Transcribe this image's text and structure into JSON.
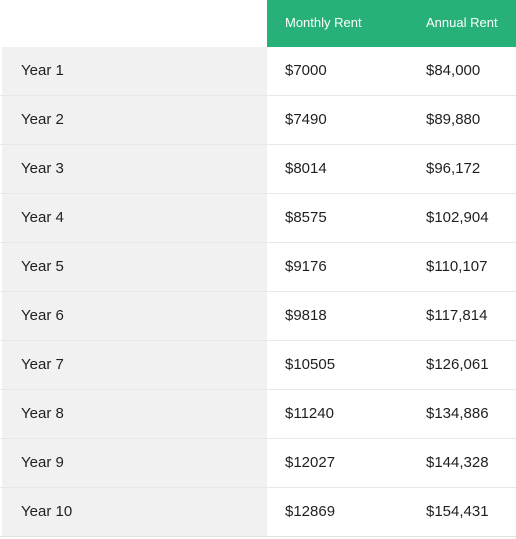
{
  "header": {
    "monthly_label": "Monthly Rent",
    "annual_label": "Annual Rent"
  },
  "colors": {
    "header_green": "#27b178",
    "label_column_bg": "#f1f1f1"
  },
  "rows": [
    {
      "year": "Year 1",
      "monthly": "$7000",
      "annual": "$84,000"
    },
    {
      "year": "Year 2",
      "monthly": "$7490",
      "annual": "$89,880"
    },
    {
      "year": "Year 3",
      "monthly": "$8014",
      "annual": "$96,172"
    },
    {
      "year": "Year 4",
      "monthly": "$8575",
      "annual": "$102,904"
    },
    {
      "year": "Year 5",
      "monthly": "$9176",
      "annual": "$110,107"
    },
    {
      "year": "Year 6",
      "monthly": "$9818",
      "annual": "$117,814"
    },
    {
      "year": "Year 7",
      "monthly": "$10505",
      "annual": "$126,061"
    },
    {
      "year": "Year 8",
      "monthly": "$11240",
      "annual": "$134,886"
    },
    {
      "year": "Year 9",
      "monthly": "$12027",
      "annual": "$144,328"
    },
    {
      "year": "Year 10",
      "monthly": "$12869",
      "annual": "$154,431"
    }
  ]
}
